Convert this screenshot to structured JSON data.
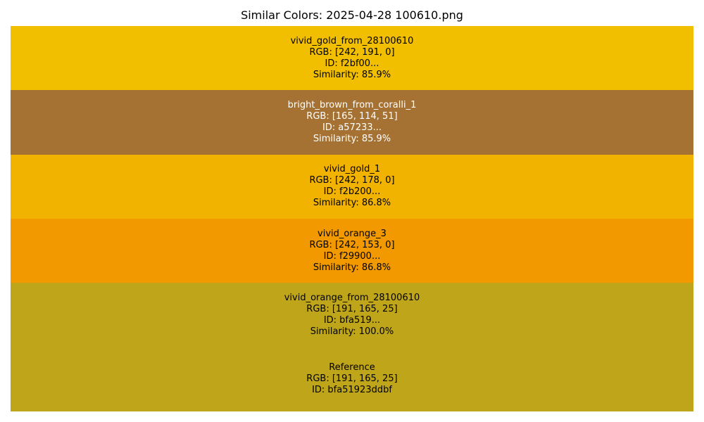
{
  "title": "Similar Colors: 2025-04-28 100610.png",
  "chart_data": {
    "type": "bar",
    "title": "Similar Colors: 2025-04-28 100610.png",
    "bands": [
      {
        "name": "vivid_gold_from_28100610",
        "rgb_label": "RGB: [242, 191, 0]",
        "id_label": "ID: f2bf00...",
        "similarity_label": "Similarity: 85.9%",
        "color": "#f2bf00",
        "text_color": "#000000",
        "span": 1
      },
      {
        "name": "bright_brown_from_coralli_1",
        "rgb_label": "RGB: [165, 114, 51]",
        "id_label": "ID: a57233...",
        "similarity_label": "Similarity: 85.9%",
        "color": "#a57233",
        "text_color": "#ffffff",
        "span": 1
      },
      {
        "name": "vivid_gold_1",
        "rgb_label": "RGB: [242, 178, 0]",
        "id_label": "ID: f2b200...",
        "similarity_label": "Similarity: 86.8%",
        "color": "#f2b200",
        "text_color": "#000000",
        "span": 1
      },
      {
        "name": "vivid_orange_3",
        "rgb_label": "RGB: [242, 153, 0]",
        "id_label": "ID: f29900...",
        "similarity_label": "Similarity: 86.8%",
        "color": "#f29900",
        "text_color": "#000000",
        "span": 1
      },
      {
        "name": "vivid_orange_from_28100610",
        "rgb_label": "RGB: [191, 165, 25]",
        "id_label": "ID: bfa519...",
        "similarity_label": "Similarity: 100.0%",
        "color": "#bfa519",
        "text_color": "#000000",
        "span": 1
      },
      {
        "name": "Reference",
        "rgb_label": "RGB: [191, 165, 25]",
        "id_label": "ID: bfa51923ddbf",
        "similarity_label": "",
        "color": "#bfa519",
        "text_color": "#000000",
        "span": 1
      }
    ]
  }
}
